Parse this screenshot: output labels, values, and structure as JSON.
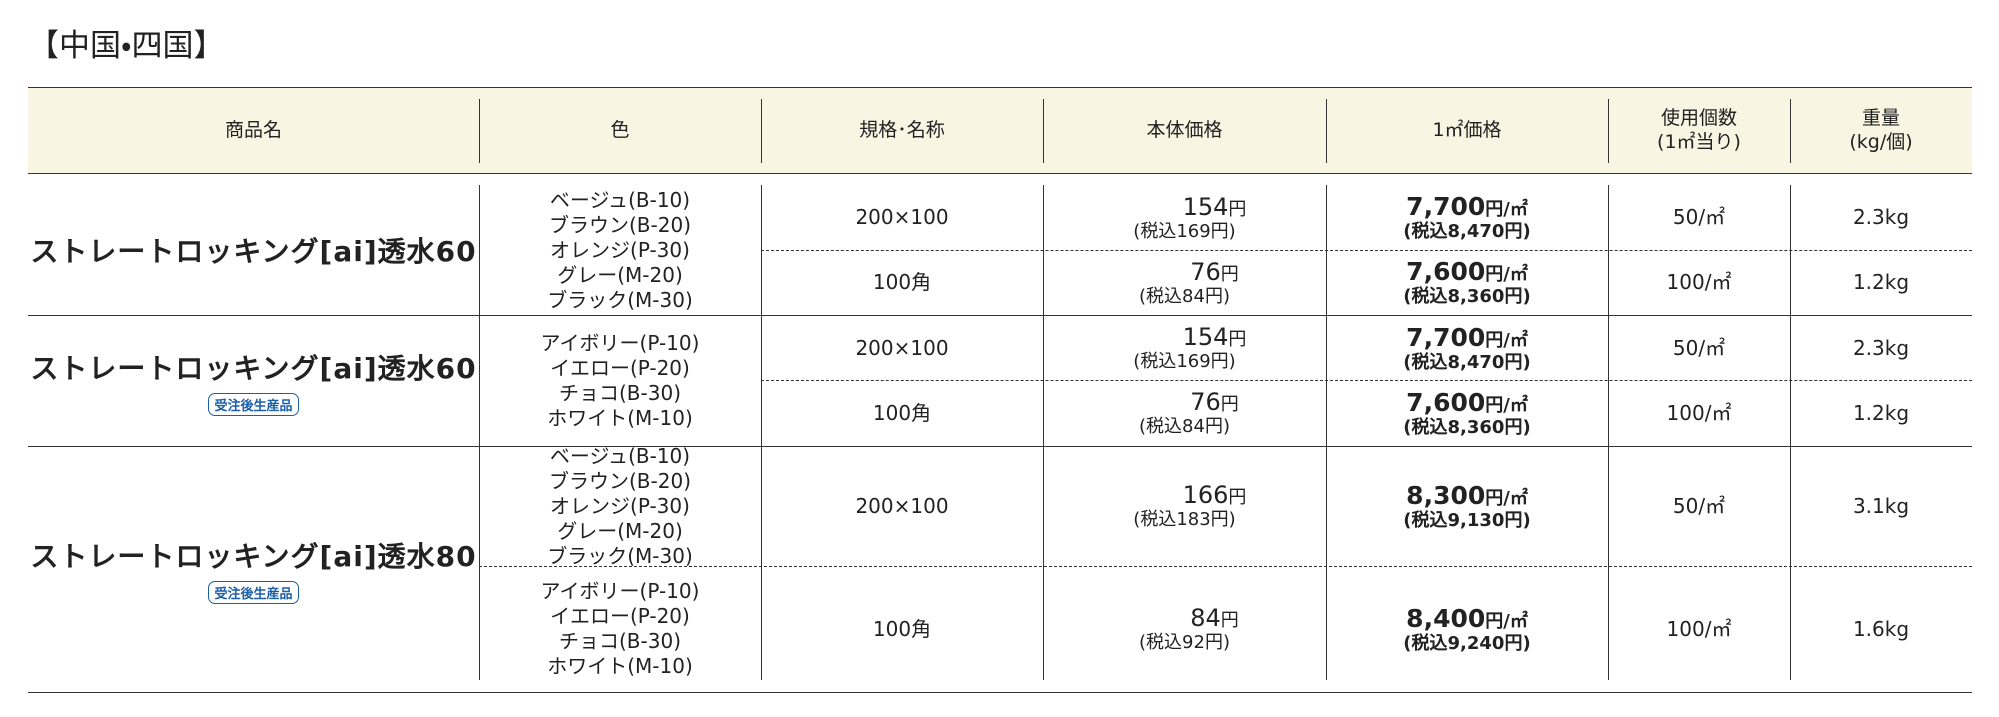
{
  "title": "【中国・四国】",
  "table": {
    "header": [
      [
        "商品名"
      ],
      [
        "色"
      ],
      [
        "規格･名称"
      ],
      [
        "本体価格"
      ],
      [
        "1㎡価格"
      ],
      [
        "使用個数",
        "(1㎡当り)"
      ],
      [
        "重量",
        "(kg/個)"
      ]
    ],
    "groups": [
      {
        "name": "ストレートロッキング[ai]透水60",
        "colors": [
          [
            "ベージュ(B-10)",
            "ブラウン(B-20)",
            "オレンジ(P-30)",
            "グレー(M-20)",
            "ブラック(M-30)"
          ]
        ],
        "rows": [
          {
            "size": "200×100",
            "price": "154",
            "price_unit": "円",
            "price_tax": "(税込169円)",
            "sqm": "7,700",
            "sqm_unit": "円/㎡",
            "sqm_tax": "(税込8,470円)",
            "usage": "50/㎡",
            "weight": "2.3kg"
          },
          {
            "size": "100角",
            "price": "76",
            "price_unit": "円",
            "price_tax": "(税込84円)",
            "sqm": "7,600",
            "sqm_unit": "円/㎡",
            "sqm_tax": "(税込8,360円)",
            "usage": "100/㎡",
            "weight": "1.2kg"
          }
        ]
      },
      {
        "name": "ストレートロッキング[ai]透水60",
        "badge": "受注後生産品",
        "colors": [
          [
            "アイボリー(P-10)",
            "イエロー(P-20)",
            "チョコ(B-30)",
            "ホワイト(M-10)"
          ]
        ],
        "rows": [
          {
            "size": "200×100",
            "price": "154",
            "price_unit": "円",
            "price_tax": "(税込169円)",
            "sqm": "7,700",
            "sqm_unit": "円/㎡",
            "sqm_tax": "(税込8,470円)",
            "usage": "50/㎡",
            "weight": "2.3kg"
          },
          {
            "size": "100角",
            "price": "76",
            "price_unit": "円",
            "price_tax": "(税込84円)",
            "sqm": "7,600",
            "sqm_unit": "円/㎡",
            "sqm_tax": "(税込8,360円)",
            "usage": "100/㎡",
            "weight": "1.2kg"
          }
        ]
      },
      {
        "name": "ストレートロッキング[ai]透水80",
        "badge": "受注後生産品",
        "colors": [
          [
            "ベージュ(B-10)",
            "ブラウン(B-20)",
            "オレンジ(P-30)",
            "グレー(M-20)",
            "ブラック(M-30)"
          ],
          [
            "アイボリー(P-10)",
            "イエロー(P-20)",
            "チョコ(B-30)",
            "ホワイト(M-10)"
          ]
        ],
        "rows": [
          {
            "size": "200×100",
            "price": "166",
            "price_unit": "円",
            "price_tax": "(税込183円)",
            "sqm": "8,300",
            "sqm_unit": "円/㎡",
            "sqm_tax": "(税込9,130円)",
            "usage": "50/㎡",
            "weight": "3.1kg"
          },
          {
            "size": "100角",
            "price": "84",
            "price_unit": "円",
            "price_tax": "(税込92円)",
            "sqm": "8,400",
            "sqm_unit": "円/㎡",
            "sqm_tax": "(税込9,240円)",
            "usage": "100/㎡",
            "weight": "1.6kg"
          }
        ]
      }
    ]
  }
}
